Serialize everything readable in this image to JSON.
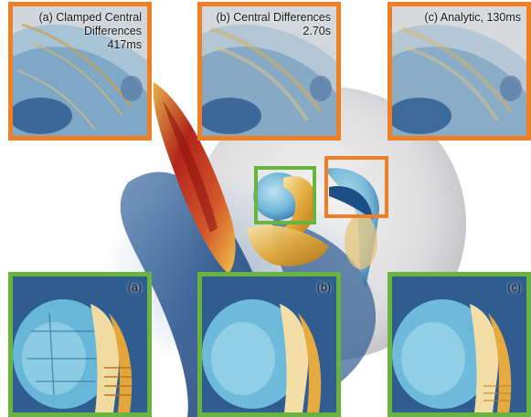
{
  "colors": {
    "top_frame": "#f07f24",
    "bottom_frame": "#69b43f",
    "marker_orange": "#f07f24",
    "marker_green": "#69b43f"
  },
  "top_insets": [
    {
      "caption_lines": [
        "(a) Clamped Central",
        "Differences",
        "417ms"
      ]
    },
    {
      "caption_lines": [
        "(b) Central Differences",
        "2.70s"
      ]
    },
    {
      "caption_lines": [
        "(c) Analytic, 130ms"
      ]
    }
  ],
  "bottom_insets": [
    {
      "caption": "(a)"
    },
    {
      "caption": "(b)"
    },
    {
      "caption": "(c)"
    }
  ]
}
